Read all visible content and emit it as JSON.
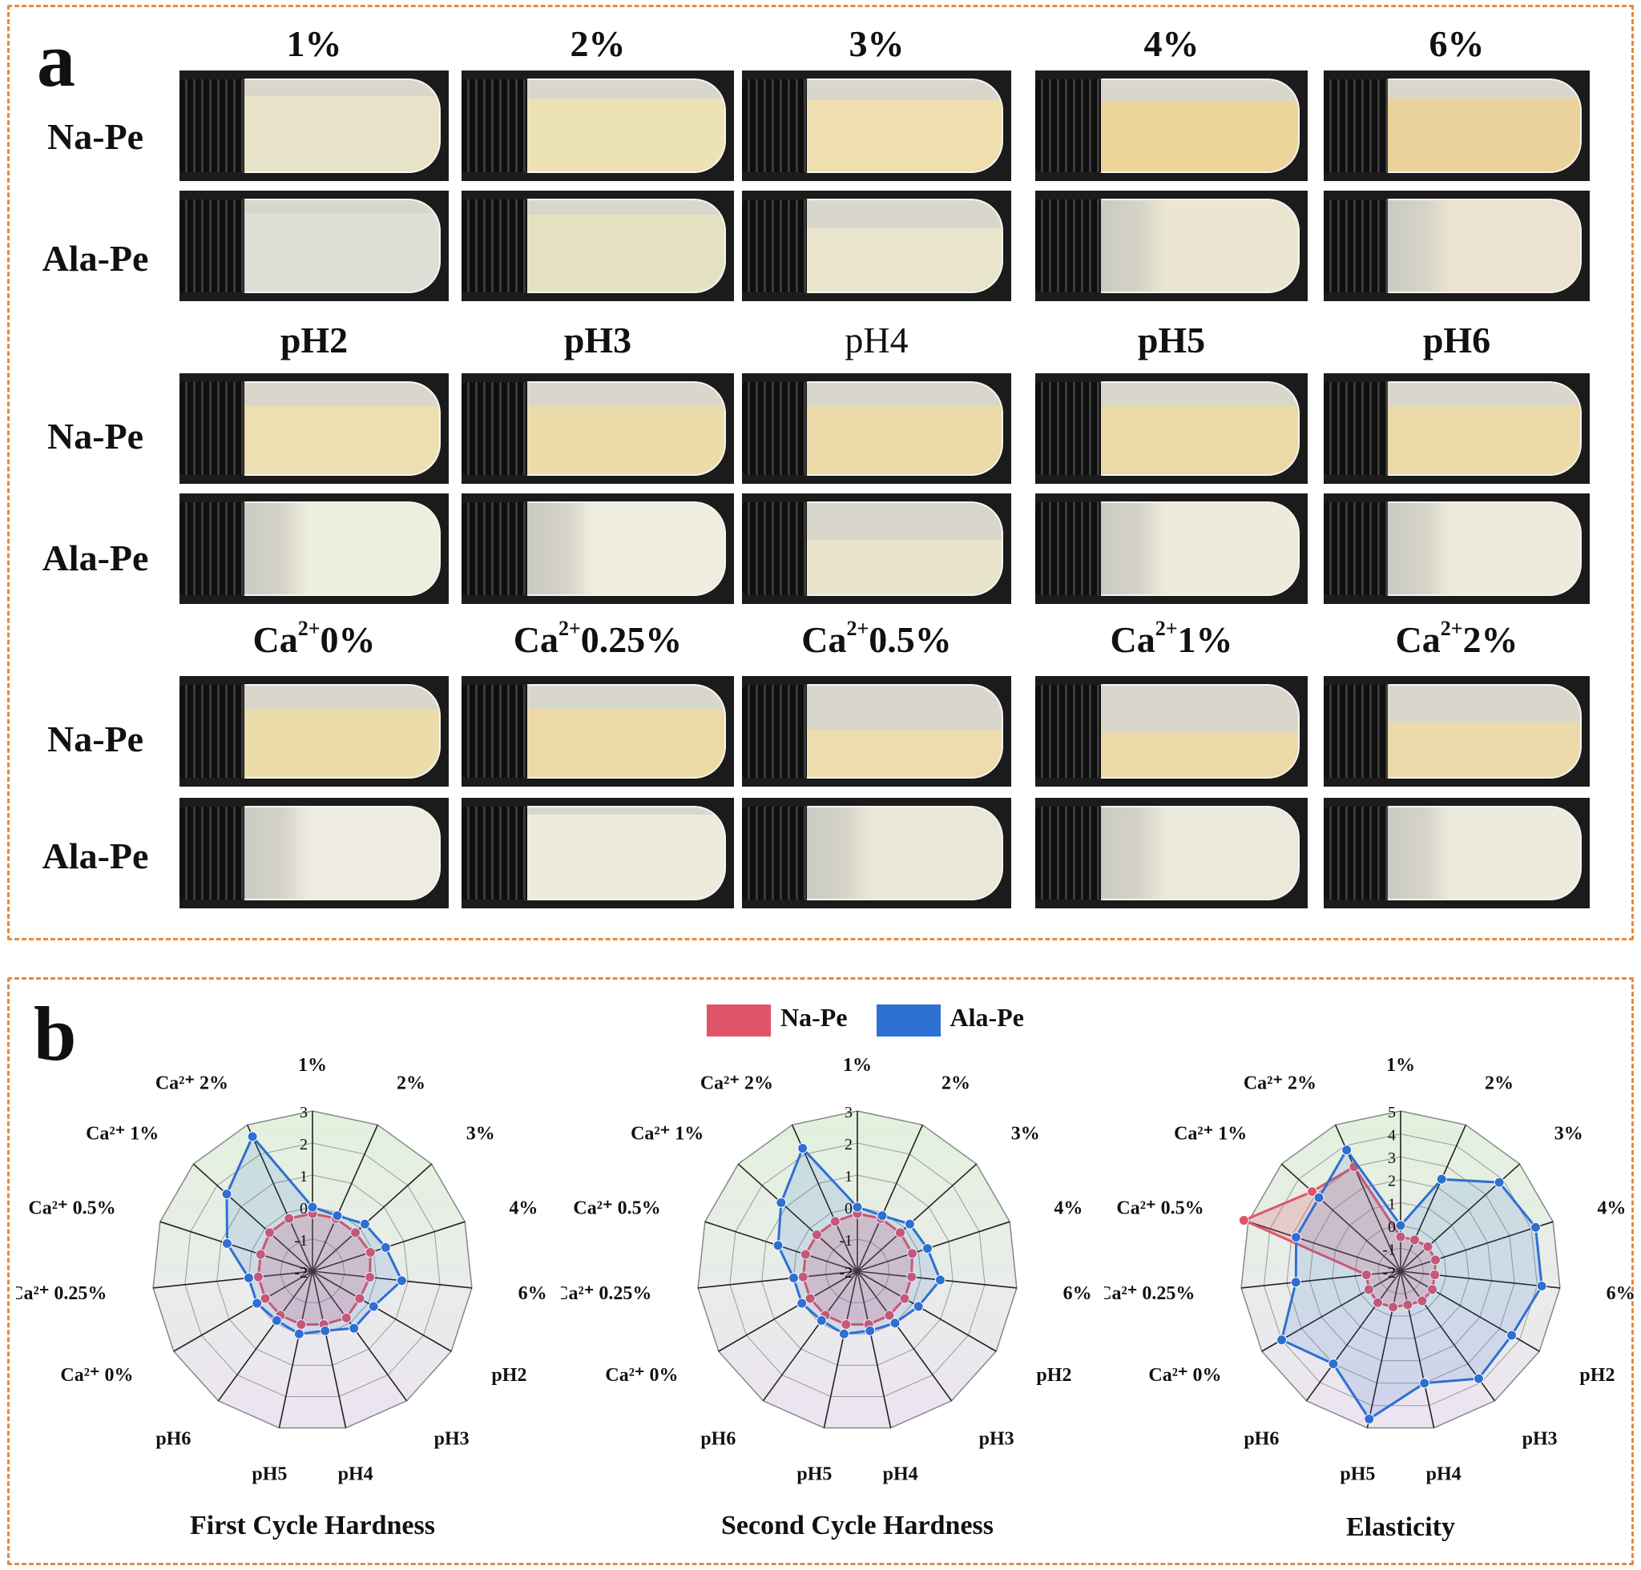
{
  "panel_a": {
    "letter": "a",
    "sections": [
      {
        "columns": [
          {
            "text": "1%"
          },
          {
            "text": "2%"
          },
          {
            "text": "3%"
          },
          {
            "text": "4%"
          },
          {
            "text": "6%"
          }
        ]
      },
      {
        "columns": [
          {
            "text": "pH2"
          },
          {
            "text": "pH3"
          },
          {
            "text": "pH4"
          },
          {
            "text": "pH5"
          },
          {
            "text": "pH6"
          }
        ]
      },
      {
        "columns": [
          {
            "base": "Ca",
            "sup": "2+",
            "rest": "0%"
          },
          {
            "base": "Ca",
            "sup": "2+",
            "rest": "0.25%"
          },
          {
            "base": "Ca",
            "sup": "2+",
            "rest": "0.5%"
          },
          {
            "base": "Ca",
            "sup": "2+",
            "rest": "1%"
          },
          {
            "base": "Ca",
            "sup": "2+",
            "rest": "2%"
          }
        ]
      }
    ],
    "row_labels": [
      "Na-Pe",
      "Ala-Pe"
    ]
  },
  "panel_b": {
    "letter": "b",
    "legend": [
      {
        "label": "Na-Pe",
        "color": "#e05468"
      },
      {
        "label": "Ala-Pe",
        "color": "#2e6fd2"
      }
    ],
    "axis_labels": [
      "1%",
      "2%",
      "3%",
      "4%",
      "6%",
      "pH2",
      "pH3",
      "pH4",
      "pH5",
      "pH6",
      "Ca²⁺ 0%",
      "Ca²⁺ 0.25%",
      "Ca²⁺ 0.5%",
      "Ca²⁺ 1%",
      "Ca²⁺ 2%"
    ],
    "colors": {
      "na": "#e05468",
      "ala": "#2e6fd2",
      "bg_top": "#e3f1dd",
      "bg_mid": "#e9ecea",
      "bg_bottom": "#ece3f1"
    }
  },
  "chart_data": [
    {
      "type": "radar",
      "title": "First Cycle Hardness",
      "categories": [
        "1%",
        "2%",
        "3%",
        "4%",
        "6%",
        "pH2",
        "pH3",
        "pH4",
        "pH5",
        "pH6",
        "Ca²⁺ 0%",
        "Ca²⁺ 0.25%",
        "Ca²⁺ 0.5%",
        "Ca²⁺ 1%",
        "Ca²⁺ 2%"
      ],
      "rlim": [
        -2,
        3
      ],
      "ticks": [
        "-2",
        "-1",
        "0",
        "1",
        "2",
        "3"
      ],
      "series": [
        {
          "name": "Na-Pe",
          "values": [
            -0.2,
            -0.2,
            -0.2,
            -0.1,
            -0.2,
            -0.3,
            -0.2,
            -0.3,
            -0.3,
            -0.3,
            -0.3,
            -0.3,
            -0.3,
            -0.2,
            -0.2
          ]
        },
        {
          "name": "Ala-Pe",
          "values": [
            0.0,
            -0.1,
            0.2,
            0.4,
            0.8,
            0.2,
            0.2,
            -0.1,
            0.0,
            -0.1,
            0.0,
            0.0,
            0.8,
            1.6,
            2.6
          ]
        }
      ]
    },
    {
      "type": "radar",
      "title": "Second Cycle Hardness",
      "categories": [
        "1%",
        "2%",
        "3%",
        "4%",
        "6%",
        "pH2",
        "pH3",
        "pH4",
        "pH5",
        "pH6",
        "Ca²⁺ 0%",
        "Ca²⁺ 0.25%",
        "Ca²⁺ 0.5%",
        "Ca²⁺ 1%",
        "Ca²⁺ 2%"
      ],
      "rlim": [
        -2,
        3
      ],
      "ticks": [
        "-2",
        "-1",
        "0",
        "1",
        "2",
        "3"
      ],
      "series": [
        {
          "name": "Na-Pe",
          "values": [
            -0.2,
            -0.2,
            -0.2,
            -0.2,
            -0.3,
            -0.3,
            -0.3,
            -0.3,
            -0.3,
            -0.3,
            -0.3,
            -0.3,
            -0.3,
            -0.3,
            -0.3
          ]
        },
        {
          "name": "Ala-Pe",
          "values": [
            0.0,
            -0.1,
            0.2,
            0.3,
            0.6,
            0.2,
            0.0,
            -0.1,
            0.0,
            -0.1,
            0.0,
            0.0,
            0.6,
            1.2,
            2.2
          ]
        }
      ]
    },
    {
      "type": "radar",
      "title": "Elasticity",
      "categories": [
        "1%",
        "2%",
        "3%",
        "4%",
        "6%",
        "pH2",
        "pH3",
        "pH4",
        "pH5",
        "pH6",
        "Ca²⁺ 0%",
        "Ca²⁺ 0.25%",
        "Ca²⁺ 0.5%",
        "Ca²⁺ 1%",
        "Ca²⁺ 2%"
      ],
      "rlim": [
        -2,
        5
      ],
      "ticks": [
        "-2",
        "-1",
        "0",
        "1",
        "2",
        "3",
        "4",
        "5"
      ],
      "series": [
        {
          "name": "Na-Pe",
          "values": [
            -0.5,
            -0.5,
            -0.4,
            -0.4,
            -0.5,
            -0.4,
            -0.4,
            -0.5,
            -0.4,
            -0.3,
            -0.4,
            -0.5,
            5.2,
            3.2,
            3.0
          ]
        },
        {
          "name": "Ala-Pe",
          "values": [
            0.0,
            2.4,
            3.8,
            4.2,
            4.2,
            3.6,
            3.8,
            3.0,
            4.6,
            3.0,
            4.0,
            2.6,
            2.8,
            2.8,
            3.8
          ]
        }
      ]
    }
  ]
}
